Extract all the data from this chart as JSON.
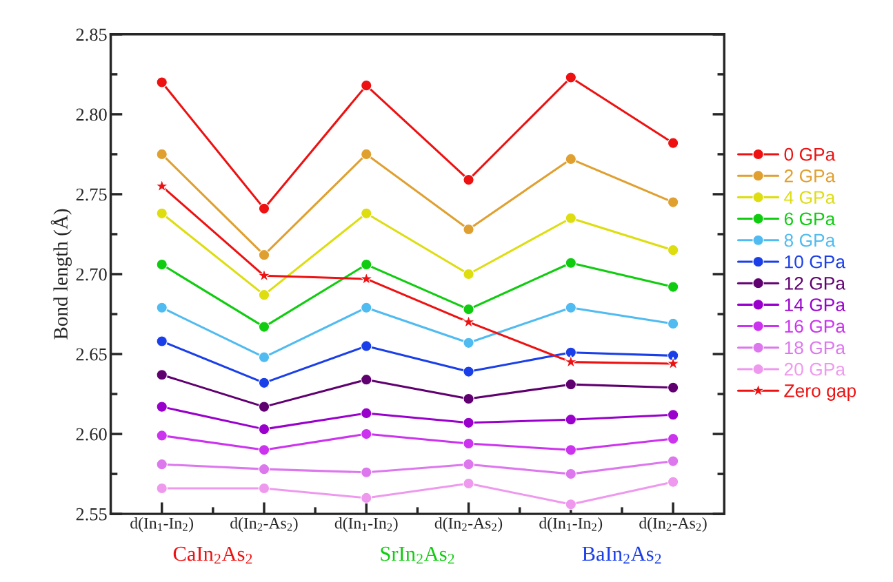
{
  "chart_data": {
    "type": "line",
    "ylabel": "Bond length (Å)",
    "categories": [
      "d(In$_{1}$-In$_{2}$)",
      "d(In$_{2}$-As$_{2}$)",
      "d(In$_{1}$-In$_{2}$)",
      "d(In$_{2}$-As$_{2}$)",
      "d(In$_{1}$-In$_{2}$)",
      "d(In$_{2}$-As$_{2}$)"
    ],
    "series": [
      {
        "name": "0 GPa",
        "color": "#ee1111",
        "values": [
          2.82,
          2.741,
          2.818,
          2.759,
          2.823,
          2.782
        ]
      },
      {
        "name": "2 GPa",
        "color": "#e0a030",
        "values": [
          2.775,
          2.712,
          2.775,
          2.728,
          2.772,
          2.745
        ]
      },
      {
        "name": "4 GPa",
        "color": "#dddd10",
        "values": [
          2.738,
          2.687,
          2.738,
          2.7,
          2.735,
          2.715
        ]
      },
      {
        "name": "6 GPa",
        "color": "#10cc10",
        "values": [
          2.706,
          2.667,
          2.706,
          2.678,
          2.707,
          2.692
        ]
      },
      {
        "name": "8 GPa",
        "color": "#50bbf0",
        "values": [
          2.679,
          2.648,
          2.679,
          2.657,
          2.679,
          2.669
        ]
      },
      {
        "name": "10 GPa",
        "color": "#1a3fe8",
        "values": [
          2.658,
          2.632,
          2.655,
          2.639,
          2.651,
          2.649
        ]
      },
      {
        "name": "12 GPa",
        "color": "#600070",
        "values": [
          2.637,
          2.617,
          2.634,
          2.622,
          2.631,
          2.629
        ]
      },
      {
        "name": "14 GPa",
        "color": "#9900cc",
        "values": [
          2.617,
          2.603,
          2.613,
          2.607,
          2.609,
          2.612
        ]
      },
      {
        "name": "16 GPa",
        "color": "#cc33ee",
        "values": [
          2.599,
          2.59,
          2.6,
          2.594,
          2.59,
          2.597
        ]
      },
      {
        "name": "18 GPa",
        "color": "#dd77ee",
        "values": [
          2.581,
          2.578,
          2.576,
          2.581,
          2.575,
          2.583
        ]
      },
      {
        "name": "20 GPa",
        "color": "#ee99ee",
        "values": [
          2.566,
          2.566,
          2.56,
          2.569,
          2.556,
          2.57
        ]
      },
      {
        "name": "Zero gap",
        "color": "#ee1111",
        "marker": "star",
        "values": [
          2.755,
          2.699,
          2.697,
          2.67,
          2.645,
          2.644
        ]
      }
    ],
    "ylim": [
      2.55,
      2.85
    ],
    "yticks": [
      2.55,
      {
        "value": 2.6,
        "label": "2.60"
      },
      2.65,
      {
        "value": 2.7,
        "label": "2.70"
      },
      2.75,
      {
        "value": 2.8,
        "label": "2.80"
      },
      2.85
    ],
    "marker": "circle",
    "line_style": "solid",
    "grid": false,
    "legend": "right",
    "annotations": [
      "CaIn$_{2}$As$_{2}$",
      "SrIn$_{2}$As$_{2}$",
      "BaIn$_{2}$As$_{2}$"
    ]
  }
}
